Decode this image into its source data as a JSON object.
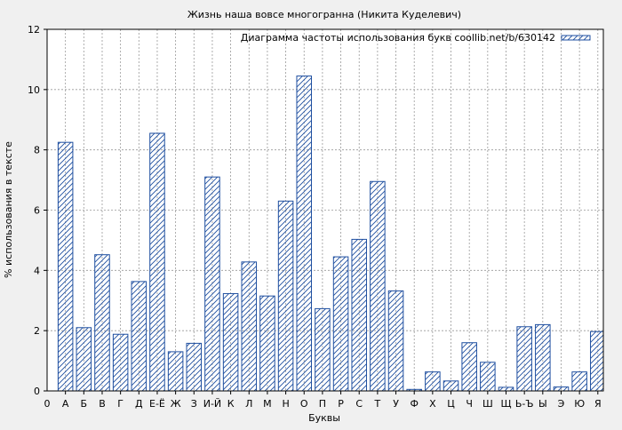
{
  "chart_data": {
    "type": "bar",
    "title": "Жизнь наша вовсе многогранна (Никита Куделевич)",
    "xlabel": "Буквы",
    "ylabel": "% использования в тексте",
    "ylim": [
      0,
      12
    ],
    "yticks": [
      0,
      2,
      4,
      6,
      8,
      10,
      12
    ],
    "x_start_label": "0",
    "grid": true,
    "legend_position": "top-right",
    "series": [
      {
        "name": "Диаграмма частоты использования букв coollib.net/b/630142",
        "color": "#1f4fa0",
        "pattern": "diagonal-hatch"
      }
    ],
    "categories": [
      "А",
      "Б",
      "В",
      "Г",
      "Д",
      "Е-Ё",
      "Ж",
      "З",
      "И-Й",
      "К",
      "Л",
      "М",
      "Н",
      "О",
      "П",
      "Р",
      "С",
      "Т",
      "У",
      "Ф",
      "Х",
      "Ц",
      "Ч",
      "Ш",
      "Щ",
      "Ь-Ъ",
      "Ы",
      "Э",
      "Ю",
      "Я"
    ],
    "values": [
      8.25,
      2.1,
      4.52,
      1.88,
      3.63,
      8.55,
      1.3,
      1.58,
      7.1,
      3.23,
      4.28,
      3.15,
      6.3,
      10.45,
      2.73,
      4.45,
      5.03,
      6.95,
      3.32,
      0.05,
      0.63,
      0.33,
      1.6,
      0.95,
      0.12,
      2.13,
      2.2,
      0.13,
      0.63,
      1.97
    ]
  }
}
